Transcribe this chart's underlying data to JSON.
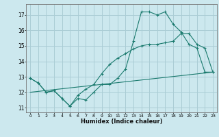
{
  "xlabel": "Humidex (Indice chaleur)",
  "bg_color": "#cce8ee",
  "grid_color": "#aacdd5",
  "line_color": "#1a7a6e",
  "xlim": [
    -0.5,
    23.5
  ],
  "ylim": [
    10.7,
    17.7
  ],
  "yticks": [
    11,
    12,
    13,
    14,
    15,
    16,
    17
  ],
  "xticks": [
    0,
    1,
    2,
    3,
    4,
    5,
    6,
    7,
    8,
    9,
    10,
    11,
    12,
    13,
    14,
    15,
    16,
    17,
    18,
    19,
    20,
    21,
    22,
    23
  ],
  "line1_x": [
    0,
    1,
    2,
    3,
    4,
    5,
    6,
    7,
    8,
    9,
    10,
    11,
    12,
    13,
    14,
    15,
    16,
    17,
    18,
    19,
    20,
    21,
    22,
    23
  ],
  "line1_y": [
    12.9,
    12.6,
    12.0,
    12.1,
    11.6,
    11.1,
    11.6,
    11.5,
    12.0,
    12.5,
    12.5,
    12.9,
    13.5,
    15.3,
    17.2,
    17.2,
    17.0,
    17.2,
    16.4,
    15.9,
    15.1,
    14.85,
    13.3,
    13.3
  ],
  "line2_x": [
    0,
    1,
    2,
    3,
    4,
    5,
    6,
    7,
    8,
    9,
    10,
    11,
    12,
    13,
    14,
    15,
    16,
    17,
    18,
    19,
    20,
    21,
    22,
    23
  ],
  "line2_y": [
    12.9,
    12.6,
    12.0,
    12.1,
    11.6,
    11.1,
    11.8,
    12.2,
    12.5,
    13.2,
    13.8,
    14.2,
    14.5,
    14.8,
    15.0,
    15.1,
    15.1,
    15.2,
    15.3,
    15.8,
    15.8,
    15.1,
    14.85,
    13.3
  ],
  "line3_x": [
    0,
    23
  ],
  "line3_y": [
    12.0,
    13.3
  ]
}
